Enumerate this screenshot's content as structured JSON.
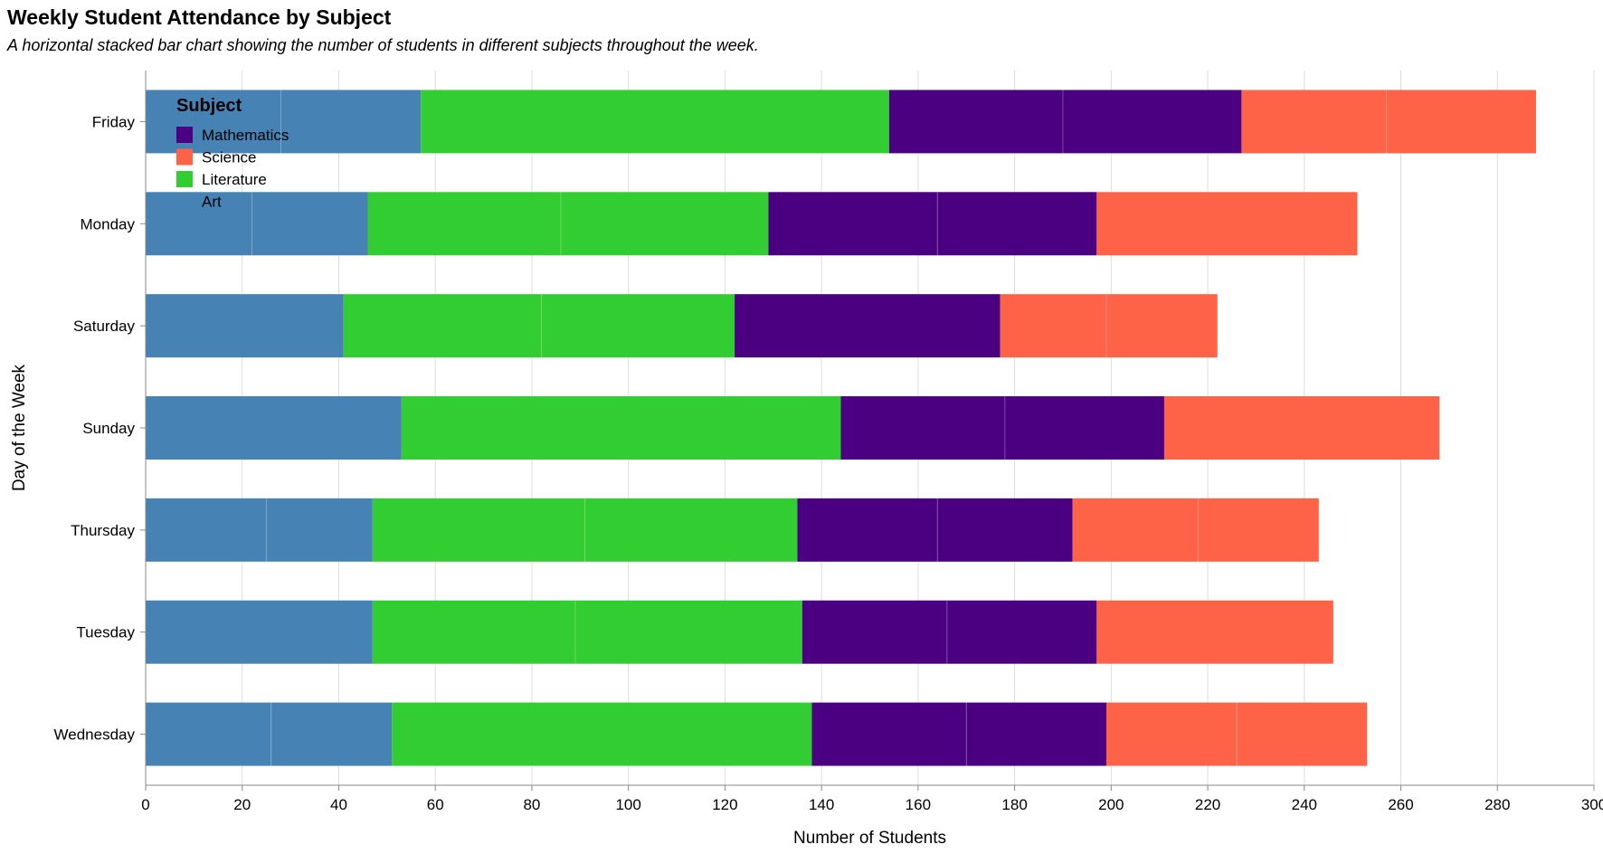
{
  "chart_data": {
    "type": "bar",
    "orientation": "horizontal",
    "stacked": true,
    "title": "Weekly Student Attendance by Subject",
    "subtitle": "A horizontal stacked bar chart showing the number of students in different subjects throughout the week.",
    "xlabel": "Number of Students",
    "ylabel": "Day of the Week",
    "xlim": [
      0,
      300
    ],
    "x_ticks": [
      0,
      20,
      40,
      60,
      80,
      100,
      120,
      140,
      160,
      180,
      200,
      220,
      240,
      260,
      280,
      300
    ],
    "grid": true,
    "legend_placement": "top-left",
    "legend_title": "Subject",
    "categories": [
      "Friday",
      "Monday",
      "Saturday",
      "Sunday",
      "Thursday",
      "Tuesday",
      "Wednesday"
    ],
    "stack_order": [
      "Art",
      "Literature",
      "Mathematics",
      "Science"
    ],
    "series": [
      {
        "name": "Mathematics",
        "color": "#4b0082",
        "segments": [
          [
            36,
            37
          ],
          [
            35,
            33
          ],
          [
            55
          ],
          [
            34,
            33
          ],
          [
            29,
            28
          ],
          [
            30,
            31
          ],
          [
            32,
            29
          ]
        ]
      },
      {
        "name": "Science",
        "color": "#ff6347",
        "segments": [
          [
            30,
            31
          ],
          [
            54
          ],
          [
            22,
            23
          ],
          [
            57
          ],
          [
            26,
            25
          ],
          [
            49
          ],
          [
            27,
            27
          ]
        ]
      },
      {
        "name": "Literature",
        "color": "#32cd32",
        "segments": [
          [
            97
          ],
          [
            40,
            43
          ],
          [
            41,
            40
          ],
          [
            91
          ],
          [
            44,
            44
          ],
          [
            42,
            47
          ],
          [
            87
          ]
        ]
      },
      {
        "name": "Art",
        "color": "#4682b4",
        "segments": [
          [
            28,
            29
          ],
          [
            22,
            24
          ],
          [
            41
          ],
          [
            53
          ],
          [
            25,
            22
          ],
          [
            47
          ],
          [
            26,
            25
          ]
        ]
      }
    ]
  }
}
